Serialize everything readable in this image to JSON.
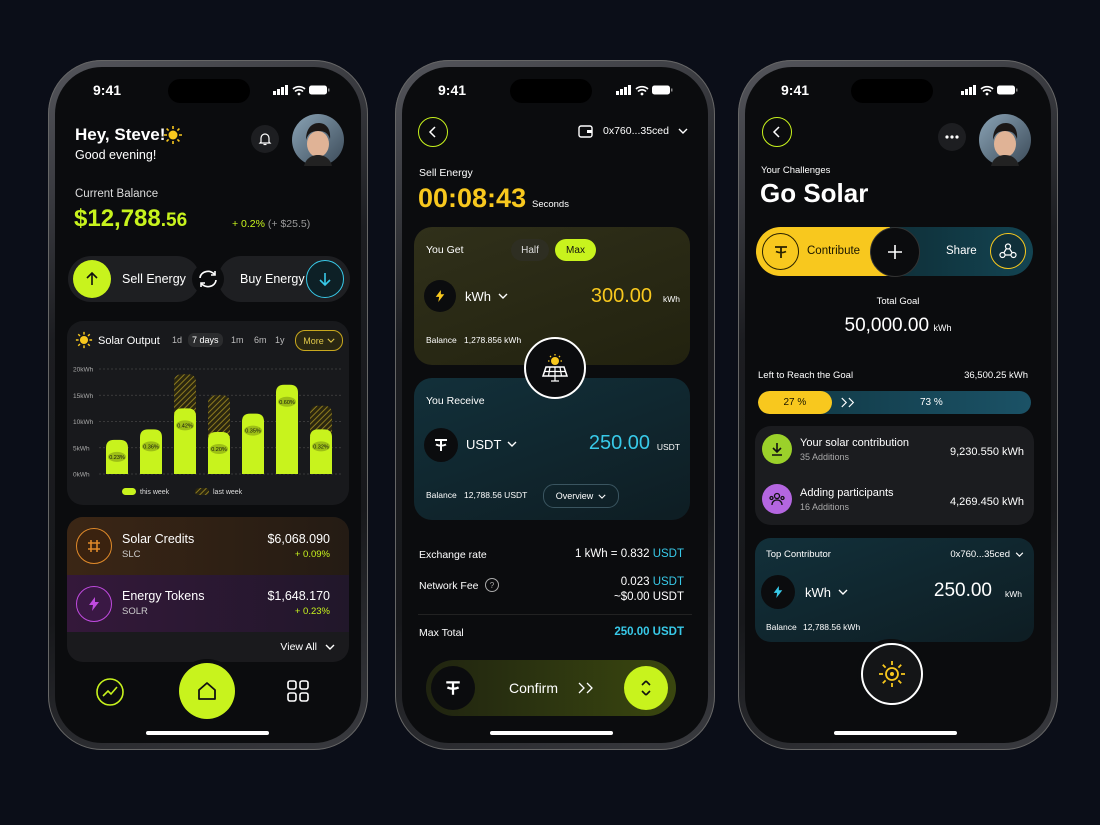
{
  "home": {
    "time": "9:41",
    "greeting": "Hey, Steve!",
    "subtitle": "Good evening!",
    "balance_label": "Current Balance",
    "balance_whole": "$12,788",
    "balance_cents": ".56",
    "change_pct": "+ 0.2%",
    "change_abs": "(+ $25.5)",
    "sell": "Sell Energy",
    "buy": "Buy Energy",
    "assets": [
      {
        "name": "Solar Credits",
        "symbol": "SLC",
        "value": "$6,068.090",
        "change": "+ 0.09%"
      },
      {
        "name": "Energy Tokens",
        "symbol": "SOLR",
        "value": "$1,648.170",
        "change": "+ 0.23%"
      }
    ],
    "view_all": "View All"
  },
  "chart_data": {
    "type": "bar",
    "title": "Solar Output",
    "periods": [
      "1d",
      "7 days",
      "1m",
      "6m",
      "1y"
    ],
    "selected_period": 1,
    "more": "More",
    "ylim": [
      0,
      20
    ],
    "yticks": [
      {
        "value": 0,
        "label": "0kWh"
      },
      {
        "value": 5,
        "label": "5kWh"
      },
      {
        "value": 10,
        "label": "10kWh"
      },
      {
        "value": 15,
        "label": "15kWh"
      },
      {
        "value": 20,
        "label": "20kWh"
      }
    ],
    "grid": true,
    "series": [
      {
        "name": "last week",
        "color": "#8c7a1f",
        "pattern": "hatch",
        "values": [
          null,
          null,
          19,
          15,
          null,
          null,
          13
        ]
      },
      {
        "name": "this week",
        "color": "#c8f31d",
        "values": [
          6.5,
          8.5,
          12.5,
          8,
          11.5,
          17,
          8.5
        ],
        "annotations": [
          "0.23%",
          "0.36%",
          "0.42%",
          "0.20%",
          "0.35%",
          "0.60%",
          "0.32%"
        ]
      }
    ]
  },
  "swap": {
    "time": "9:41",
    "wallet": "0x760...35ced",
    "title": "Sell Energy",
    "timer": "00:08:43",
    "timer_unit": "Seconds",
    "get": {
      "label": "You Get",
      "options": [
        "Half",
        "Max"
      ],
      "selected": 1,
      "asset": "kWh",
      "amount": "300.00",
      "unit": "kWh",
      "balance_label": "Balance",
      "balance": "1,278.856 kWh"
    },
    "receive": {
      "label": "You Receive",
      "asset": "USDT",
      "amount": "250.00",
      "unit": "USDT",
      "balance_label": "Balance",
      "balance": "12,788.56 USDT",
      "overview": "Overview"
    },
    "rate_label": "Exchange rate",
    "rate": "1 kWh = 0.832",
    "rate_unit": "USDT",
    "fee_label": "Network Fee",
    "fee": "0.023",
    "fee_unit": "USDT",
    "fee_usd": "~$0.00 USDT",
    "total_label": "Max Total",
    "total": "250.00 USDT",
    "confirm": "Confirm"
  },
  "challenge": {
    "time": "9:41",
    "kicker": "Your Challenges",
    "title": "Go Solar",
    "contribute": "Contribute",
    "share": "Share",
    "goal_label": "Total Goal",
    "goal": "50,000.00",
    "goal_unit": "kWh",
    "left_label": "Left to Reach the Goal",
    "left": "36,500.25 kWh",
    "progress": [
      {
        "value": 27,
        "label": "27 %"
      },
      {
        "value": 73,
        "label": "73 %"
      }
    ],
    "stats": [
      {
        "title": "Your solar contribution",
        "sub": "35 Additions",
        "value": "9,230.550 kWh"
      },
      {
        "title": "Adding participants",
        "sub": "16 Additions",
        "value": "4,269.450 kWh"
      }
    ],
    "top": {
      "label": "Top Contributor",
      "wallet": "0x760...35ced",
      "asset": "kWh",
      "amount": "250.00",
      "unit": "kWh",
      "balance_label": "Balance",
      "balance": "12,788.56 kWh"
    }
  }
}
